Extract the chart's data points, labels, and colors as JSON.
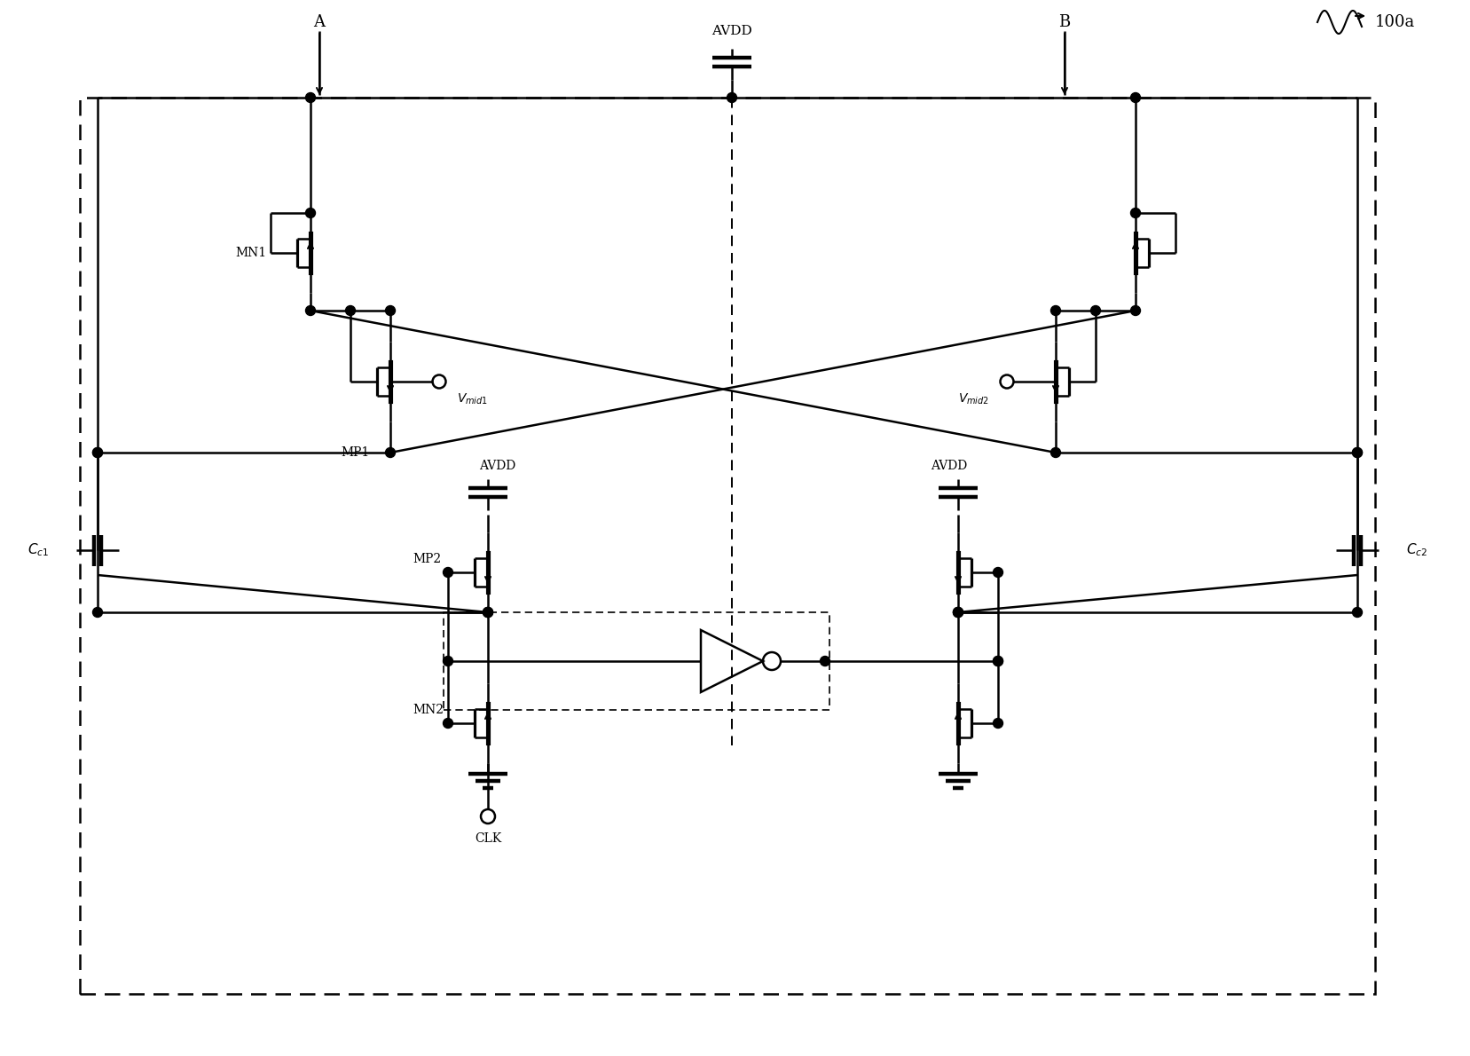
{
  "figsize": [
    16.57,
    11.9
  ],
  "dpi": 100,
  "xlim": [
    0,
    165.7
  ],
  "ylim": [
    0,
    119.0
  ],
  "line_color": "#000000",
  "bg_color": "#ffffff",
  "lw": 1.8,
  "lw_thick": 3.2
}
